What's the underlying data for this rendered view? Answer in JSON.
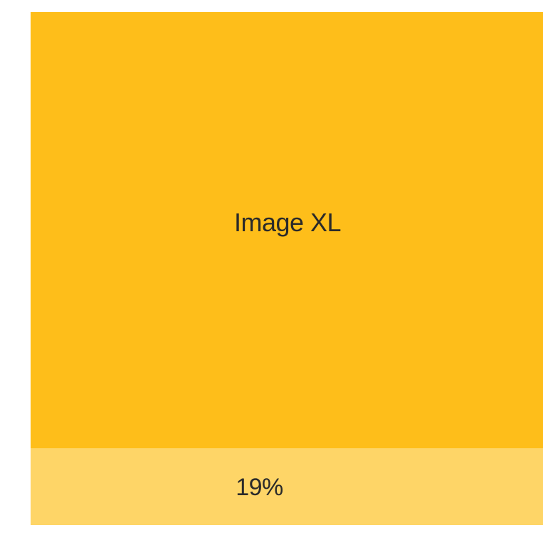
{
  "image": {
    "label": "Image XL",
    "color": "#FEBE1A"
  },
  "footer": {
    "label": "19%",
    "color": "#FED567"
  }
}
